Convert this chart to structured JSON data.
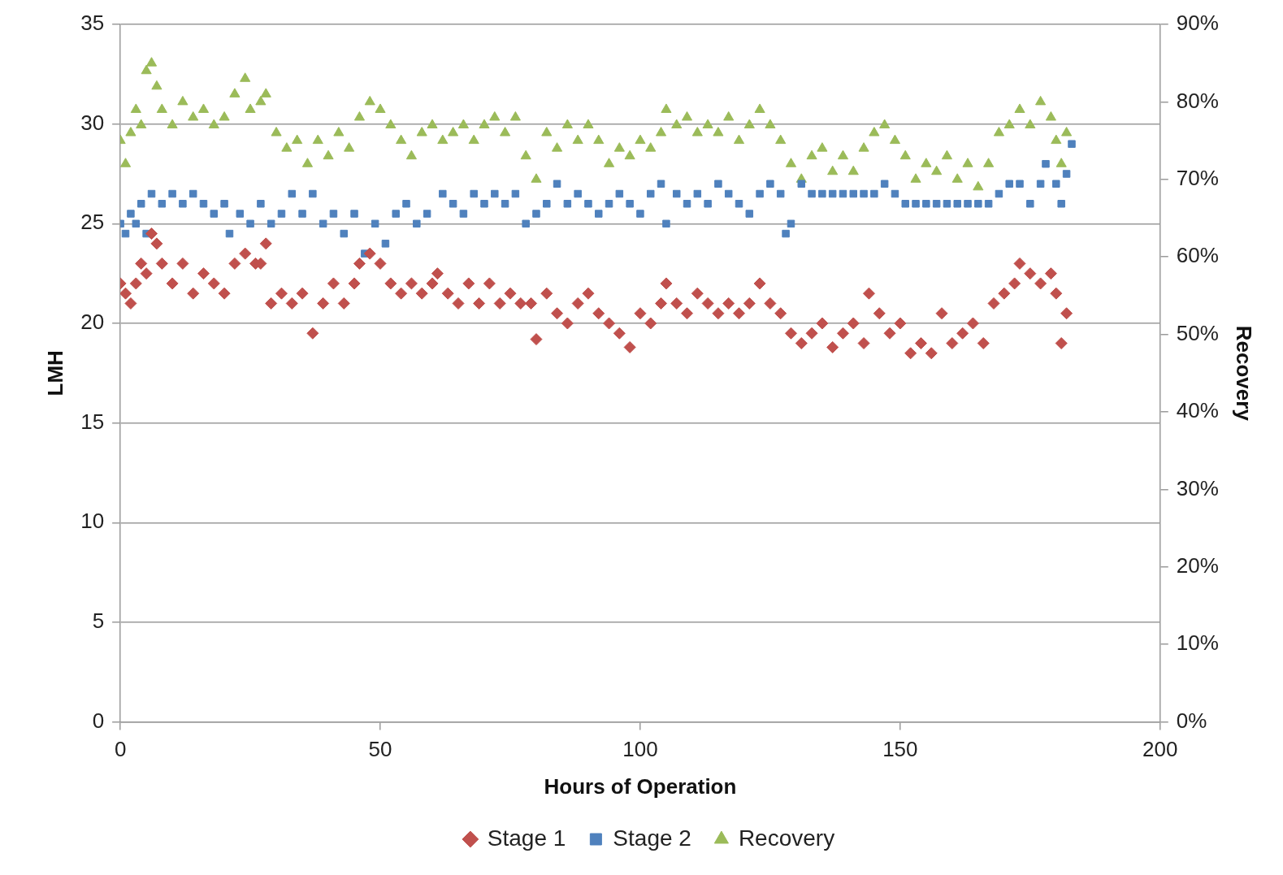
{
  "chart_data": {
    "type": "scatter",
    "xlabel": "Hours of Operation",
    "ylabel": "LMH",
    "y2label": "Recovery",
    "xlim": [
      0,
      200
    ],
    "xticks": [
      0,
      50,
      100,
      150,
      200
    ],
    "ylim": [
      0,
      35
    ],
    "yticks": [
      0,
      5,
      10,
      15,
      20,
      25,
      30,
      35
    ],
    "y2lim": [
      0,
      90
    ],
    "y2ticks": [
      {
        "value": 0,
        "label": "0%"
      },
      {
        "value": 10,
        "label": "10%"
      },
      {
        "value": 20,
        "label": "20%"
      },
      {
        "value": 30,
        "label": "30%"
      },
      {
        "value": 40,
        "label": "40%"
      },
      {
        "value": 50,
        "label": "50%"
      },
      {
        "value": 60,
        "label": "60%"
      },
      {
        "value": 70,
        "label": "70%"
      },
      {
        "value": 80,
        "label": "80%"
      },
      {
        "value": 90,
        "label": "90%"
      }
    ],
    "grid": "y",
    "legend": "bottom",
    "series": [
      {
        "name": "Stage 1",
        "color": "#c0504d",
        "marker": "diamond",
        "x": [
          0,
          1,
          2,
          3,
          4,
          5,
          6,
          7,
          8,
          10,
          12,
          14,
          16,
          18,
          20,
          22,
          24,
          26,
          27,
          28,
          29,
          31,
          33,
          35,
          37,
          39,
          41,
          43,
          45,
          46,
          48,
          50,
          52,
          54,
          56,
          58,
          60,
          61,
          63,
          65,
          67,
          69,
          71,
          73,
          75,
          77,
          79,
          80,
          82,
          84,
          86,
          88,
          90,
          92,
          94,
          96,
          98,
          100,
          102,
          104,
          105,
          107,
          109,
          111,
          113,
          115,
          117,
          119,
          121,
          123,
          125,
          127,
          129,
          131,
          133,
          135,
          137,
          139,
          141,
          143,
          144,
          146,
          148,
          150,
          152,
          154,
          156,
          158,
          160,
          162,
          164,
          166,
          168,
          170,
          172,
          173,
          175,
          177,
          179,
          180,
          181,
          182
        ],
        "values": [
          22,
          21.5,
          21,
          22,
          23,
          22.5,
          24.5,
          24,
          23,
          22,
          23,
          21.5,
          22.5,
          22,
          21.5,
          23,
          23.5,
          23,
          23,
          24,
          21,
          21.5,
          21,
          21.5,
          19.5,
          21,
          22,
          21,
          22,
          23,
          23.5,
          23,
          22,
          21.5,
          22,
          21.5,
          22,
          22.5,
          21.5,
          21,
          22,
          21,
          22,
          21,
          21.5,
          21,
          21,
          19.2,
          21.5,
          20.5,
          20,
          21,
          21.5,
          20.5,
          20,
          19.5,
          18.8,
          20.5,
          20,
          21,
          22,
          21,
          20.5,
          21.5,
          21,
          20.5,
          21,
          20.5,
          21,
          22,
          21,
          20.5,
          19.5,
          19,
          19.5,
          20,
          18.8,
          19.5,
          20,
          19,
          21.5,
          20.5,
          19.5,
          20,
          18.5,
          19,
          18.5,
          20.5,
          19,
          19.5,
          20,
          19,
          21,
          21.5,
          22,
          23,
          22.5,
          22,
          22.5,
          21.5,
          19,
          20.5
        ]
      },
      {
        "name": "Stage 2",
        "color": "#4f81bd",
        "marker": "square",
        "x": [
          0,
          1,
          2,
          3,
          4,
          5,
          6,
          8,
          10,
          12,
          14,
          16,
          18,
          20,
          21,
          23,
          25,
          27,
          29,
          31,
          33,
          35,
          37,
          39,
          41,
          43,
          45,
          47,
          49,
          51,
          53,
          55,
          57,
          59,
          62,
          64,
          66,
          68,
          70,
          72,
          74,
          76,
          78,
          80,
          82,
          84,
          86,
          88,
          90,
          92,
          94,
          96,
          98,
          100,
          102,
          104,
          105,
          107,
          109,
          111,
          113,
          115,
          117,
          119,
          121,
          123,
          125,
          127,
          128,
          129,
          131,
          133,
          135,
          137,
          139,
          141,
          143,
          145,
          147,
          149,
          151,
          153,
          155,
          157,
          159,
          161,
          163,
          165,
          167,
          169,
          171,
          173,
          175,
          177,
          178,
          180,
          181,
          182,
          183
        ],
        "values": [
          25,
          24.5,
          25.5,
          25,
          26,
          24.5,
          26.5,
          26,
          26.5,
          26,
          26.5,
          26,
          25.5,
          26,
          24.5,
          25.5,
          25,
          26,
          25,
          25.5,
          26.5,
          25.5,
          26.5,
          25,
          25.5,
          24.5,
          25.5,
          23.5,
          25,
          24,
          25.5,
          26,
          25,
          25.5,
          26.5,
          26,
          25.5,
          26.5,
          26,
          26.5,
          26,
          26.5,
          25,
          25.5,
          26,
          27,
          26,
          26.5,
          26,
          25.5,
          26,
          26.5,
          26,
          25.5,
          26.5,
          27,
          25,
          26.5,
          26,
          26.5,
          26,
          27,
          26.5,
          26,
          25.5,
          26.5,
          27,
          26.5,
          24.5,
          25,
          27,
          26.5,
          26.5,
          26.5,
          26.5,
          26.5,
          26.5,
          26.5,
          27,
          26.5,
          26,
          26,
          26,
          26,
          26,
          26,
          26,
          26,
          26,
          26.5,
          27,
          27,
          26,
          27,
          28,
          27,
          26,
          27.5,
          29
        ]
      },
      {
        "name": "Recovery",
        "color": "#9bbb59",
        "marker": "triangle",
        "axis": "y2",
        "x": [
          0,
          1,
          2,
          3,
          4,
          5,
          6,
          7,
          8,
          10,
          12,
          14,
          16,
          18,
          20,
          22,
          24,
          25,
          27,
          28,
          30,
          32,
          34,
          36,
          38,
          40,
          42,
          44,
          46,
          48,
          50,
          52,
          54,
          56,
          58,
          60,
          62,
          64,
          66,
          68,
          70,
          72,
          74,
          76,
          78,
          80,
          82,
          84,
          86,
          88,
          90,
          92,
          94,
          96,
          98,
          100,
          102,
          104,
          105,
          107,
          109,
          111,
          113,
          115,
          117,
          119,
          121,
          123,
          125,
          127,
          129,
          131,
          133,
          135,
          137,
          139,
          141,
          143,
          145,
          147,
          149,
          151,
          153,
          155,
          157,
          159,
          161,
          163,
          165,
          167,
          169,
          171,
          173,
          175,
          177,
          179,
          180,
          181,
          182
        ],
        "values": [
          75,
          72,
          76,
          79,
          77,
          84,
          85,
          82,
          79,
          77,
          80,
          78,
          79,
          77,
          78,
          81,
          83,
          79,
          80,
          81,
          76,
          74,
          75,
          72,
          75,
          73,
          76,
          74,
          78,
          80,
          79,
          77,
          75,
          73,
          76,
          77,
          75,
          76,
          77,
          75,
          77,
          78,
          76,
          78,
          73,
          70,
          76,
          74,
          77,
          75,
          77,
          75,
          72,
          74,
          73,
          75,
          74,
          76,
          79,
          77,
          78,
          76,
          77,
          76,
          78,
          75,
          77,
          79,
          77,
          75,
          72,
          70,
          73,
          74,
          71,
          73,
          71,
          74,
          76,
          77,
          75,
          73,
          70,
          72,
          71,
          73,
          70,
          72,
          69,
          72,
          76,
          77,
          79,
          77,
          80,
          78,
          75,
          72,
          76
        ]
      }
    ]
  }
}
